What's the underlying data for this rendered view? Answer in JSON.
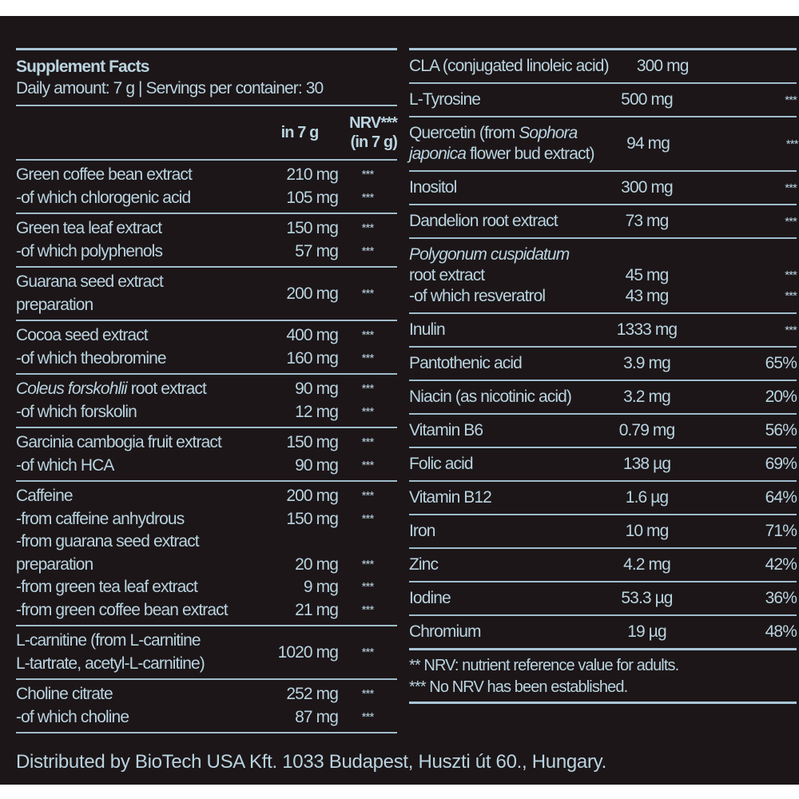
{
  "colors": {
    "background": "#1c1618",
    "text": "#b9d3df",
    "rule": "#a9c7d6"
  },
  "header": {
    "title": "Supplement Facts",
    "subtitle": "Daily amount: 7 g | Servings per container: 30",
    "col_amount": "in 7 g",
    "col_nrv_1": "NRV***",
    "col_nrv_2": "(in 7 g)"
  },
  "left_rows": [
    {
      "lines": [
        [
          {
            "t": "Green coffee bean extract"
          }
        ],
        [
          {
            "t": "-of which chlorogenic acid"
          }
        ]
      ],
      "sub": [
        [
          "210 mg",
          "***"
        ],
        [
          "105 mg",
          "***"
        ]
      ]
    },
    {
      "lines": [
        [
          {
            "t": "Green tea leaf extract"
          }
        ],
        [
          {
            "t": "-of which polyphenols"
          }
        ]
      ],
      "sub": [
        [
          "150 mg",
          "***"
        ],
        [
          "57 mg",
          "***"
        ]
      ]
    },
    {
      "lines": [
        [
          {
            "t": "Guarana seed extract"
          }
        ],
        [
          {
            "t": "preparation"
          }
        ]
      ],
      "amount": "200 mg",
      "nrv": "***"
    },
    {
      "lines": [
        [
          {
            "t": "Cocoa seed extract"
          }
        ],
        [
          {
            "t": "-of which theobromine"
          }
        ]
      ],
      "sub": [
        [
          "400 mg",
          "***"
        ],
        [
          "160 mg",
          "***"
        ]
      ]
    },
    {
      "lines": [
        [
          {
            "t": "Coleus forskohlii",
            "i": true
          },
          {
            "t": " root extract"
          }
        ],
        [
          {
            "t": "-of which forskolin"
          }
        ]
      ],
      "sub": [
        [
          "90 mg",
          "***"
        ],
        [
          "12 mg",
          "***"
        ]
      ]
    },
    {
      "lines": [
        [
          {
            "t": "Garcinia cambogia fruit extract"
          }
        ],
        [
          {
            "t": "-of which HCA"
          }
        ]
      ],
      "sub": [
        [
          "150 mg",
          "***"
        ],
        [
          "90 mg",
          "***"
        ]
      ]
    },
    {
      "caffeine": true,
      "lines": [
        [
          {
            "t": "Caffeine"
          }
        ],
        [
          {
            "t": "-from caffeine anhydrous"
          }
        ],
        [
          {
            "t": "-from guarana seed extract"
          }
        ],
        [
          {
            "t": "preparation"
          }
        ],
        [
          {
            "t": "-from green tea leaf extract"
          }
        ],
        [
          {
            "t": "-from green coffee bean extract"
          }
        ]
      ],
      "sub": [
        [
          "200 mg",
          "***"
        ],
        [
          "150 mg",
          "***"
        ],
        [
          "",
          ""
        ],
        [
          "20 mg",
          "***"
        ],
        [
          "9 mg",
          "***"
        ],
        [
          "21 mg",
          "***"
        ]
      ]
    },
    {
      "lines": [
        [
          {
            "t": "L-carnitine (from L-carnitine"
          }
        ],
        [
          {
            "t": "L-tartrate, acetyl-L-carnitine)"
          }
        ]
      ],
      "amount": "1020 mg",
      "nrv": "***"
    },
    {
      "lines": [
        [
          {
            "t": "Choline citrate"
          }
        ],
        [
          {
            "t": "-of which choline"
          }
        ]
      ],
      "sub": [
        [
          "252 mg",
          "***"
        ],
        [
          "87 mg",
          "***"
        ]
      ]
    }
  ],
  "right_rows": [
    {
      "lines": [
        [
          {
            "t": "CLA (conjugated linoleic acid)"
          }
        ]
      ],
      "amount": "300 mg",
      "nrv": "***"
    },
    {
      "lines": [
        [
          {
            "t": "L-Tyrosine"
          }
        ]
      ],
      "amount": "500 mg",
      "nrv": "***"
    },
    {
      "lines": [
        [
          {
            "t": "Quercetin (from "
          },
          {
            "t": "Sophora",
            "i": true
          }
        ],
        [
          {
            "t": "japonica",
            "i": true
          },
          {
            "t": " flower bud extract)"
          }
        ]
      ],
      "amount": "94 mg",
      "nrv": "***"
    },
    {
      "lines": [
        [
          {
            "t": "Inositol"
          }
        ]
      ],
      "amount": "300 mg",
      "nrv": "***"
    },
    {
      "lines": [
        [
          {
            "t": "Dandelion root extract"
          }
        ]
      ],
      "amount": "73 mg",
      "nrv": "***"
    },
    {
      "poly": true,
      "lines": [
        [
          {
            "t": "Polygonum cuspidatum",
            "i": true
          }
        ],
        [
          {
            "t": "root extract"
          }
        ],
        [
          {
            "t": "-of which resveratrol"
          }
        ]
      ],
      "sub": [
        [
          "",
          ""
        ],
        [
          "45 mg",
          "***"
        ],
        [
          "43 mg",
          "***"
        ]
      ]
    },
    {
      "lines": [
        [
          {
            "t": "Inulin"
          }
        ]
      ],
      "amount": "1333 mg",
      "nrv": "***"
    },
    {
      "lines": [
        [
          {
            "t": "Pantothenic acid"
          }
        ]
      ],
      "amount": "3.9 mg",
      "nrv": "65%"
    },
    {
      "lines": [
        [
          {
            "t": "Niacin (as nicotinic acid)"
          }
        ]
      ],
      "amount": "3.2 mg",
      "nrv": "20%"
    },
    {
      "lines": [
        [
          {
            "t": "Vitamin B6"
          }
        ]
      ],
      "amount": "0.79 mg",
      "nrv": "56%"
    },
    {
      "lines": [
        [
          {
            "t": "Folic acid"
          }
        ]
      ],
      "amount": "138 µg",
      "nrv": "69%"
    },
    {
      "lines": [
        [
          {
            "t": "Vitamin B12"
          }
        ]
      ],
      "amount": "1.6 µg",
      "nrv": "64%"
    },
    {
      "lines": [
        [
          {
            "t": "Iron"
          }
        ]
      ],
      "amount": "10 mg",
      "nrv": "71%"
    },
    {
      "lines": [
        [
          {
            "t": "Zinc"
          }
        ]
      ],
      "amount": "4.2 mg",
      "nrv": "42%"
    },
    {
      "lines": [
        [
          {
            "t": "Iodine"
          }
        ]
      ],
      "amount": "53.3 µg",
      "nrv": "36%"
    },
    {
      "lines": [
        [
          {
            "t": "Chromium"
          }
        ]
      ],
      "amount": "19 µg",
      "nrv": "48%"
    }
  ],
  "footnotes": [
    "** NRV: nutrient reference value for adults.",
    "*** No NRV has been established."
  ],
  "distributor": "Distributed by BioTech USA Kft. 1033 Budapest, Huszti út 60., Hungary."
}
